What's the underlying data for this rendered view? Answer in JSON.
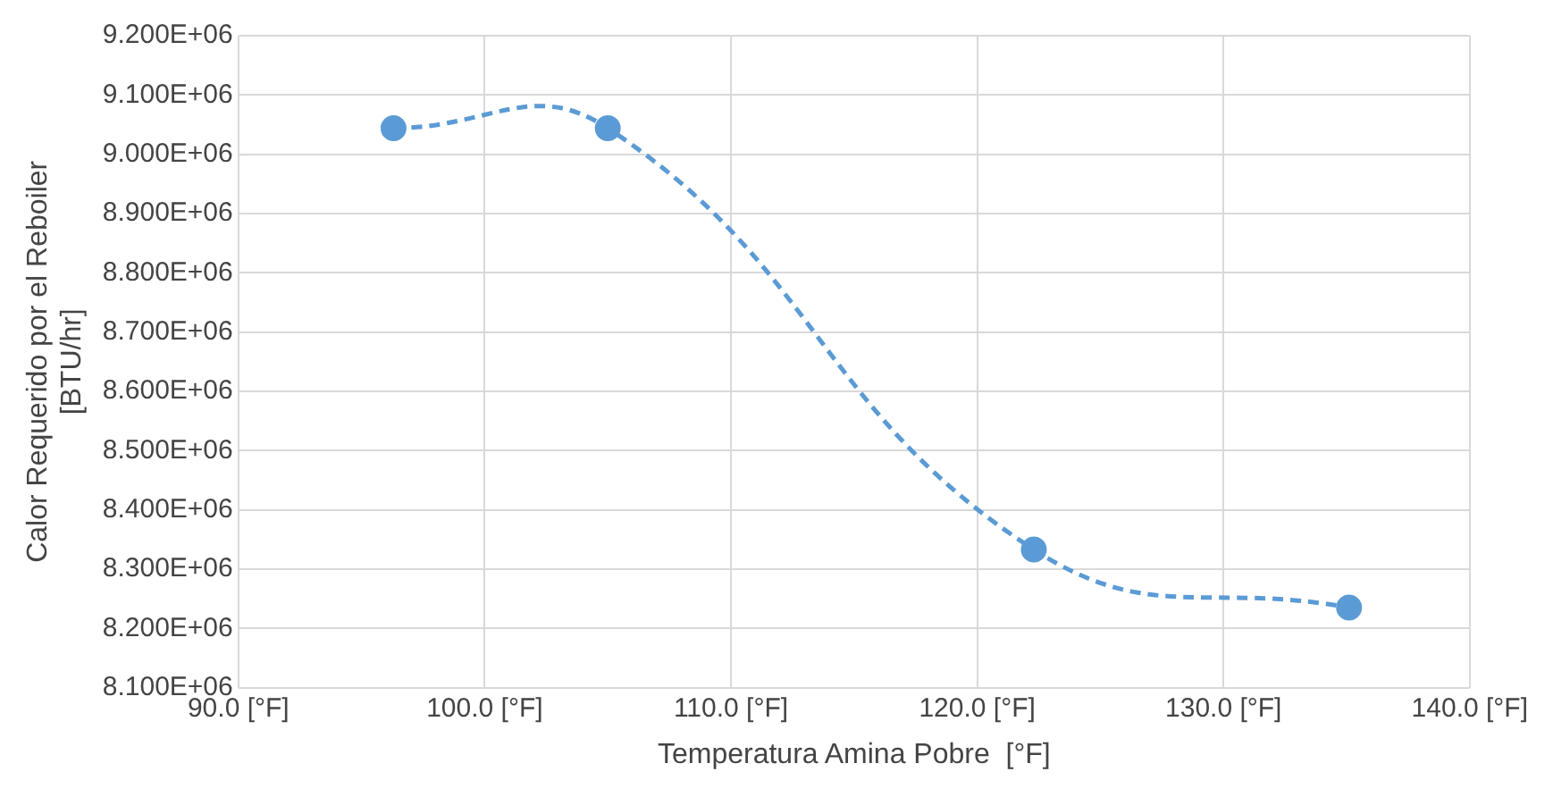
{
  "chart_data": {
    "type": "line",
    "xlabel": "Temperatura Amina Pobre  [°F]",
    "ylabel": "Calor Requerido por el Reboiler\n[BTU/hr]",
    "x": [
      96.3,
      105.0,
      122.3,
      135.1
    ],
    "series": [
      {
        "color": "#5b9bd5",
        "values": [
          9044000,
          9044000,
          8333000,
          8235000
        ]
      }
    ],
    "xlim": [
      90,
      140
    ],
    "xticks": [
      {
        "value": 90,
        "label": "90.0 [°F]"
      },
      {
        "value": 100,
        "label": "100.0 [°F]"
      },
      {
        "value": 110,
        "label": "110.0 [°F]"
      },
      {
        "value": 120,
        "label": "120.0 [°F]"
      },
      {
        "value": 130,
        "label": "130.0 [°F]"
      },
      {
        "value": 140,
        "label": "140.0 [°F]"
      }
    ],
    "ylim": [
      8100000,
      9200000
    ],
    "yticks": [
      {
        "value": 8100000,
        "label": "8.100E+06"
      },
      {
        "value": 8200000,
        "label": "8.200E+06"
      },
      {
        "value": 8300000,
        "label": "8.300E+06"
      },
      {
        "value": 8400000,
        "label": "8.400E+06"
      },
      {
        "value": 8500000,
        "label": "8.500E+06"
      },
      {
        "value": 8600000,
        "label": "8.600E+06"
      },
      {
        "value": 8700000,
        "label": "8.700E+06"
      },
      {
        "value": 8800000,
        "label": "8.800E+06"
      },
      {
        "value": 8900000,
        "label": "8.900E+06"
      },
      {
        "value": 9000000,
        "label": "9.000E+06"
      },
      {
        "value": 9100000,
        "label": "9.100E+06"
      },
      {
        "value": 9200000,
        "label": "9.200E+06"
      }
    ],
    "grid": true,
    "marker": "circle",
    "line_style": "dashed",
    "legend": false
  }
}
